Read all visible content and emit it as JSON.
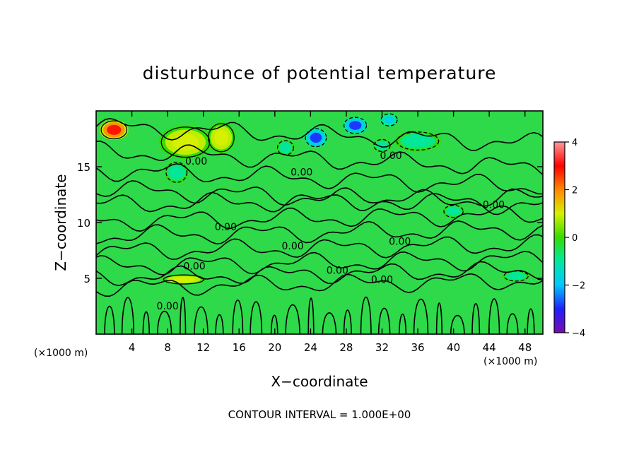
{
  "chart_data": {
    "type": "heatmap",
    "title": "disturbunce of potential temperature",
    "xlabel": "X−coordinate",
    "ylabel": "Z−coordinate",
    "x_unit": "(×1000 m)",
    "z_unit": "(×1000 m)",
    "xlim": [
      0,
      50
    ],
    "ylim": [
      0,
      20
    ],
    "x_ticks": [
      4,
      8,
      12,
      16,
      20,
      24,
      28,
      32,
      36,
      40,
      44,
      48
    ],
    "x_tick_labels": [
      "4",
      "8",
      "12",
      "16",
      "20",
      "24",
      "28",
      "32",
      "36",
      "40",
      "44",
      "48"
    ],
    "y_ticks": [
      5,
      10,
      15
    ],
    "y_tick_labels": [
      "5",
      "10",
      "15"
    ],
    "colorbar": {
      "range": [
        -4,
        4
      ],
      "ticks": [
        -4,
        -2,
        0,
        2,
        4
      ],
      "tick_labels": [
        "−4",
        "−2",
        "0",
        "2",
        "4"
      ],
      "colors": [
        "#7a0cb0",
        "#2020ff",
        "#00c8ff",
        "#00e8a0",
        "#33dd00",
        "#d8f000",
        "#ff8800",
        "#ff0000",
        "#ff9a9a"
      ]
    },
    "contour_interval": 1.0,
    "contour_labels": [
      {
        "text": "0.00",
        "x": 11.2,
        "z": 15.2
      },
      {
        "text": "0.00",
        "x": 23.0,
        "z": 14.2
      },
      {
        "text": "0.00",
        "x": 33.0,
        "z": 15.7
      },
      {
        "text": "0.00",
        "x": 44.5,
        "z": 11.3
      },
      {
        "text": "0.00",
        "x": 14.5,
        "z": 9.3
      },
      {
        "text": "0.00",
        "x": 34.0,
        "z": 8.0
      },
      {
        "text": "0.00",
        "x": 22.0,
        "z": 7.6
      },
      {
        "text": "0.00",
        "x": 11.0,
        "z": 5.8
      },
      {
        "text": "0.00",
        "x": 27.0,
        "z": 5.4
      },
      {
        "text": "0.00",
        "x": 32.0,
        "z": 4.6
      },
      {
        "text": "0.00",
        "x": 8.0,
        "z": 2.2
      }
    ],
    "anomalies": [
      {
        "x": 2.0,
        "z": 18.3,
        "value": 2.5,
        "sx": 1.6,
        "sz": 0.9
      },
      {
        "x": 10.0,
        "z": 17.2,
        "value": 1.2,
        "sx": 3.0,
        "sz": 1.5
      },
      {
        "x": 14.0,
        "z": 17.6,
        "value": 0.9,
        "sx": 1.6,
        "sz": 1.4
      },
      {
        "x": 9.8,
        "z": 4.9,
        "value": 1.3,
        "sx": 2.5,
        "sz": 0.45
      },
      {
        "x": 24.6,
        "z": 17.6,
        "value": -2.6,
        "sx": 1.3,
        "sz": 0.9
      },
      {
        "x": 29.0,
        "z": 18.7,
        "value": -2.6,
        "sx": 1.4,
        "sz": 0.8
      },
      {
        "x": 32.8,
        "z": 19.2,
        "value": -2.0,
        "sx": 1.0,
        "sz": 0.6
      },
      {
        "x": 36.0,
        "z": 17.3,
        "value": -1.4,
        "sx": 2.6,
        "sz": 0.9
      },
      {
        "x": 21.2,
        "z": 16.7,
        "value": -1.3,
        "sx": 1.0,
        "sz": 0.7
      },
      {
        "x": 9.0,
        "z": 14.5,
        "value": -1.2,
        "sx": 1.3,
        "sz": 1.0
      },
      {
        "x": 32.0,
        "z": 16.9,
        "value": -1.0,
        "sx": 1.0,
        "sz": 0.6
      },
      {
        "x": 40.0,
        "z": 11.0,
        "value": -0.9,
        "sx": 1.2,
        "sz": 0.6
      },
      {
        "x": 47.0,
        "z": 5.2,
        "value": -0.8,
        "sx": 1.5,
        "sz": 0.5
      }
    ]
  },
  "footer": {
    "contour_note": "CONTOUR INTERVAL = 1.000E+00"
  }
}
